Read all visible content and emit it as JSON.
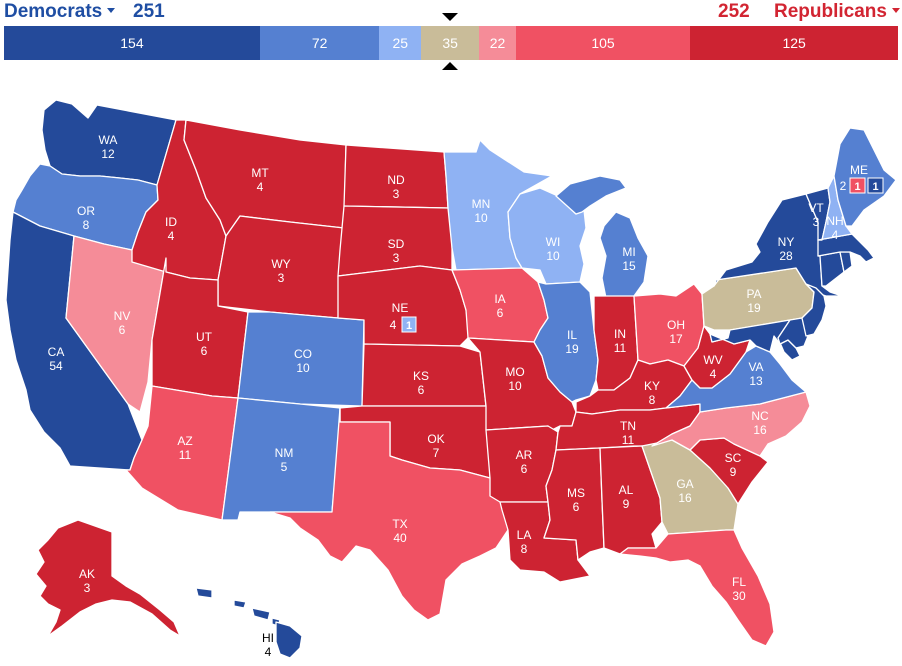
{
  "colors": {
    "safe_d": "#244a9a",
    "likely_d": "#5580d1",
    "lean_d": "#8fb2f3",
    "tossup": "#c9bc99",
    "lean_r": "#f58c98",
    "likely_r": "#f05163",
    "safe_r": "#cd2332"
  },
  "header": {
    "dem_label": "Democrats",
    "dem_total": "251",
    "rep_total": "252",
    "rep_label": "Republicans"
  },
  "bar": [
    {
      "value": "154",
      "rating": "safe_d",
      "fraction": 0.2862
    },
    {
      "value": "72",
      "rating": "likely_d",
      "fraction": 0.1338
    },
    {
      "value": "25",
      "rating": "lean_d",
      "fraction": 0.0465
    },
    {
      "value": "35",
      "rating": "tossup",
      "fraction": 0.0651
    },
    {
      "value": "22",
      "rating": "lean_r",
      "fraction": 0.0409
    },
    {
      "value": "105",
      "rating": "likely_r",
      "fraction": 0.1952
    },
    {
      "value": "125",
      "rating": "safe_r",
      "fraction": 0.2323
    }
  ],
  "states": {
    "WA": {
      "abbr": "WA",
      "ev": "12",
      "rating": "safe_d"
    },
    "OR": {
      "abbr": "OR",
      "ev": "8",
      "rating": "likely_d"
    },
    "CA": {
      "abbr": "CA",
      "ev": "54",
      "rating": "safe_d"
    },
    "NV": {
      "abbr": "NV",
      "ev": "6",
      "rating": "lean_r"
    },
    "ID": {
      "abbr": "ID",
      "ev": "4",
      "rating": "safe_r"
    },
    "MT": {
      "abbr": "MT",
      "ev": "4",
      "rating": "safe_r"
    },
    "WY": {
      "abbr": "WY",
      "ev": "3",
      "rating": "safe_r"
    },
    "UT": {
      "abbr": "UT",
      "ev": "6",
      "rating": "safe_r"
    },
    "AZ": {
      "abbr": "AZ",
      "ev": "11",
      "rating": "likely_r"
    },
    "CO": {
      "abbr": "CO",
      "ev": "10",
      "rating": "likely_d"
    },
    "NM": {
      "abbr": "NM",
      "ev": "5",
      "rating": "likely_d"
    },
    "ND": {
      "abbr": "ND",
      "ev": "3",
      "rating": "safe_r"
    },
    "SD": {
      "abbr": "SD",
      "ev": "3",
      "rating": "safe_r"
    },
    "NE": {
      "abbr": "NE",
      "ev": "4",
      "rating": "safe_r",
      "district_ev": "1",
      "district_rating": "lean_d"
    },
    "KS": {
      "abbr": "KS",
      "ev": "6",
      "rating": "safe_r"
    },
    "OK": {
      "abbr": "OK",
      "ev": "7",
      "rating": "safe_r"
    },
    "TX": {
      "abbr": "TX",
      "ev": "40",
      "rating": "likely_r"
    },
    "MN": {
      "abbr": "MN",
      "ev": "10",
      "rating": "lean_d"
    },
    "IA": {
      "abbr": "IA",
      "ev": "6",
      "rating": "likely_r"
    },
    "MO": {
      "abbr": "MO",
      "ev": "10",
      "rating": "safe_r"
    },
    "AR": {
      "abbr": "AR",
      "ev": "6",
      "rating": "safe_r"
    },
    "LA": {
      "abbr": "LA",
      "ev": "8",
      "rating": "safe_r"
    },
    "WI": {
      "abbr": "WI",
      "ev": "10",
      "rating": "lean_d"
    },
    "IL": {
      "abbr": "IL",
      "ev": "19",
      "rating": "likely_d"
    },
    "MI": {
      "abbr": "MI",
      "ev": "15",
      "rating": "likely_d"
    },
    "IN": {
      "abbr": "IN",
      "ev": "11",
      "rating": "safe_r"
    },
    "OH": {
      "abbr": "OH",
      "ev": "17",
      "rating": "likely_r"
    },
    "KY": {
      "abbr": "KY",
      "ev": "8",
      "rating": "safe_r"
    },
    "TN": {
      "abbr": "TN",
      "ev": "11",
      "rating": "safe_r"
    },
    "MS": {
      "abbr": "MS",
      "ev": "6",
      "rating": "safe_r"
    },
    "AL": {
      "abbr": "AL",
      "ev": "9",
      "rating": "safe_r"
    },
    "GA": {
      "abbr": "GA",
      "ev": "16",
      "rating": "tossup"
    },
    "FL": {
      "abbr": "FL",
      "ev": "30",
      "rating": "likely_r"
    },
    "SC": {
      "abbr": "SC",
      "ev": "9",
      "rating": "safe_r"
    },
    "NC": {
      "abbr": "NC",
      "ev": "16",
      "rating": "lean_r"
    },
    "VA": {
      "abbr": "VA",
      "ev": "13",
      "rating": "likely_d"
    },
    "WV": {
      "abbr": "WV",
      "ev": "4",
      "rating": "safe_r"
    },
    "PA": {
      "abbr": "PA",
      "ev": "19",
      "rating": "tossup"
    },
    "NY": {
      "abbr": "NY",
      "ev": "28",
      "rating": "safe_d"
    },
    "VT": {
      "abbr": "VT",
      "ev": "3",
      "rating": "safe_d"
    },
    "NH": {
      "abbr": "NH",
      "ev": "4",
      "rating": "lean_d"
    },
    "ME": {
      "abbr": "ME",
      "ev": "2",
      "rating": "likely_d",
      "district_1_ev": "1",
      "district_1_rating": "likely_r",
      "district_2_ev": "1",
      "district_2_rating": "safe_d"
    },
    "MA": {
      "rating": "safe_d"
    },
    "CT": {
      "rating": "safe_d"
    },
    "RI": {
      "rating": "safe_d"
    },
    "NJ": {
      "rating": "safe_d"
    },
    "DE": {
      "rating": "safe_d"
    },
    "MD": {
      "rating": "safe_d"
    },
    "AK": {
      "abbr": "AK",
      "ev": "3",
      "rating": "safe_r"
    },
    "HI": {
      "abbr": "HI",
      "ev": "4",
      "rating": "safe_d"
    }
  }
}
